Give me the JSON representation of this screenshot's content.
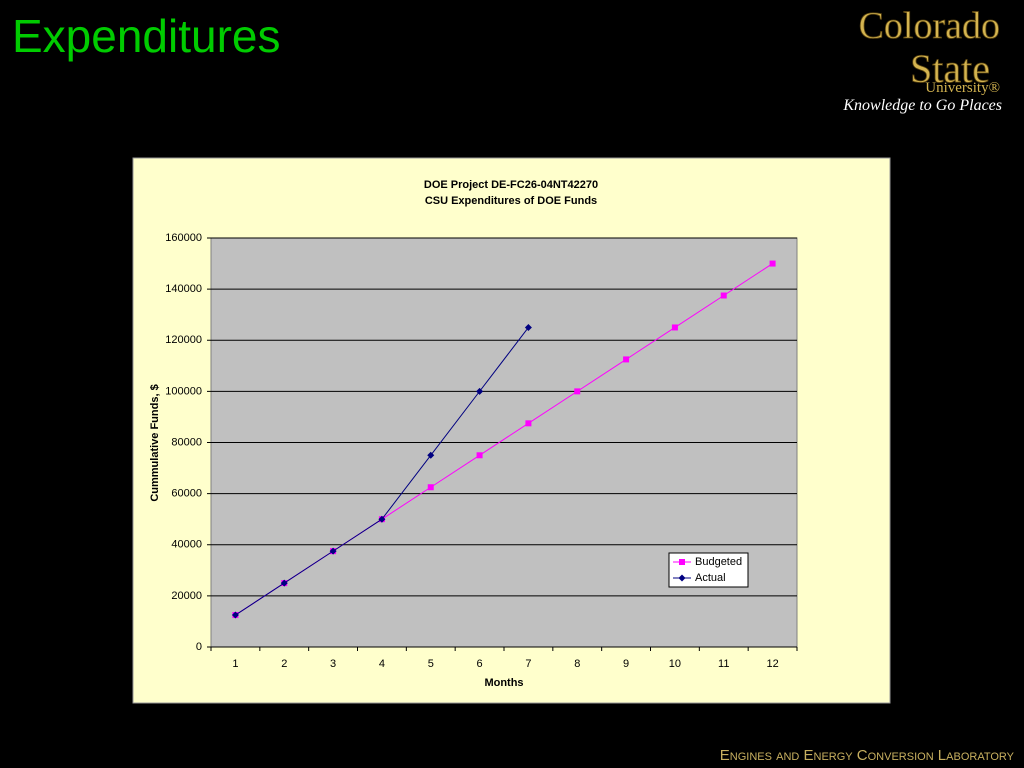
{
  "slide_title": "Expenditures",
  "logo": {
    "line1": "Colorado",
    "line2": "State",
    "line3": "University®",
    "tagline": "Knowledge to Go Places"
  },
  "footer": "Engines and Energy Conversion Laboratory",
  "chart_data": {
    "type": "line",
    "title": "DOE Project DE-FC26-04NT42270",
    "subtitle": "CSU Expenditures of DOE Funds",
    "x_label": "Months",
    "y_label": "Cummulative Funds, $",
    "categories": [
      "1",
      "2",
      "3",
      "4",
      "5",
      "6",
      "7",
      "8",
      "9",
      "10",
      "11",
      "12"
    ],
    "series": [
      {
        "name": "Budgeted",
        "color": "#ff00ff",
        "marker": "square",
        "values": [
          12500,
          25000,
          37500,
          50000,
          62500,
          75000,
          87500,
          100000,
          112500,
          125000,
          137500,
          150000
        ]
      },
      {
        "name": "Actual",
        "color": "#000080",
        "marker": "diamond",
        "values": [
          12500,
          25000,
          37500,
          50000,
          75000,
          100000,
          125000,
          null,
          null,
          null,
          null,
          null
        ]
      }
    ],
    "ylim": [
      0,
      160000
    ],
    "yticks": [
      0,
      20000,
      40000,
      60000,
      80000,
      100000,
      120000,
      140000,
      160000
    ],
    "grid": true,
    "legend": "lower right"
  }
}
